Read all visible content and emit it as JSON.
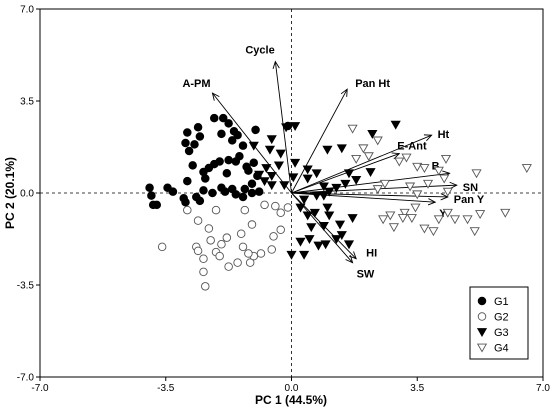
{
  "chart_data": {
    "type": "scatter",
    "subtype": "PCA biplot",
    "title": "",
    "xlabel": "PC 1 (44.5%)",
    "ylabel": "PC 2 (20.1%)",
    "xlim": [
      -7.0,
      7.0
    ],
    "ylim": [
      -7.0,
      7.0
    ],
    "x_ticks": [
      -7.0,
      -3.5,
      0.0,
      3.5,
      7.0
    ],
    "y_ticks": [
      -7.0,
      -3.5,
      0.0,
      3.5,
      7.0
    ],
    "x_tick_labels": [
      "-7.0",
      "-3.5",
      "0.0",
      "3.5",
      "7.0"
    ],
    "y_tick_labels": [
      "-7.0",
      "-3.5",
      "0.0",
      "3.5",
      "7.0"
    ],
    "grid": false,
    "reference_lines": "dashed lines at x = 0 and y = 0",
    "legend_position": "bottom-right",
    "series": [
      {
        "name": "G1",
        "marker": "filled-circle",
        "points": [
          [
            -2.9,
            2.3
          ],
          [
            -2.6,
            2.5
          ],
          [
            -2.55,
            2.15
          ],
          [
            -2.95,
            1.9
          ],
          [
            -2.7,
            1.85
          ],
          [
            -2.85,
            1.6
          ],
          [
            -2.15,
            2.85
          ],
          [
            -1.9,
            2.85
          ],
          [
            -1.75,
            2.65
          ],
          [
            -1.6,
            2.35
          ],
          [
            -1.5,
            2.2
          ],
          [
            -1.95,
            2.25
          ],
          [
            -1.65,
            2.0
          ],
          [
            -1.35,
            1.8
          ],
          [
            -1.0,
            2.4
          ],
          [
            -1.45,
            1.4
          ],
          [
            -1.75,
            1.25
          ],
          [
            -1.55,
            1.2
          ],
          [
            -2.0,
            1.2
          ],
          [
            -2.15,
            1.1
          ],
          [
            -2.3,
            0.95
          ],
          [
            -2.75,
            1.05
          ],
          [
            -2.45,
            0.8
          ],
          [
            -1.8,
            0.75
          ],
          [
            -1.2,
            0.85
          ],
          [
            -1.05,
            1.15
          ],
          [
            -1.25,
            1.0
          ],
          [
            -0.95,
            0.65
          ],
          [
            -1.1,
            0.35
          ],
          [
            -1.3,
            0.15
          ],
          [
            -1.65,
            0.15
          ],
          [
            -1.95,
            0.2
          ],
          [
            -1.85,
            0.05
          ],
          [
            -2.2,
            0.0
          ],
          [
            -2.45,
            0.1
          ],
          [
            -2.65,
            -0.15
          ],
          [
            -2.9,
            0.45
          ],
          [
            -3.0,
            -0.2
          ],
          [
            -3.45,
            0.2
          ],
          [
            -3.3,
            0.05
          ],
          [
            -3.95,
            0.2
          ],
          [
            -3.9,
            -0.1
          ],
          [
            -3.85,
            -0.45
          ],
          [
            -3.75,
            -0.45
          ],
          [
            -2.95,
            -0.35
          ],
          [
            -2.55,
            -0.3
          ],
          [
            -1.55,
            -0.05
          ],
          [
            -1.35,
            -0.15
          ],
          [
            -1.1,
            0.0
          ],
          [
            -0.9,
            0.05
          ],
          [
            -0.1,
            2.55
          ],
          [
            -2.4,
            0.55
          ]
        ]
      },
      {
        "name": "G2",
        "marker": "open-circle",
        "points": [
          [
            -2.9,
            -0.65
          ],
          [
            -2.1,
            -0.65
          ],
          [
            -2.6,
            -1.05
          ],
          [
            -2.3,
            -1.35
          ],
          [
            -1.3,
            -0.65
          ],
          [
            -0.75,
            -0.45
          ],
          [
            -0.45,
            -0.5
          ],
          [
            -0.3,
            -0.75
          ],
          [
            -0.1,
            -0.55
          ],
          [
            -1.1,
            -1.2
          ],
          [
            -1.4,
            -1.55
          ],
          [
            -1.8,
            -1.7
          ],
          [
            -1.95,
            -1.95
          ],
          [
            -3.6,
            -2.05
          ],
          [
            -2.65,
            -2.05
          ],
          [
            -2.25,
            -1.8
          ],
          [
            -2.1,
            -2.25
          ],
          [
            -2.45,
            -2.5
          ],
          [
            -1.5,
            -2.65
          ],
          [
            -1.15,
            -2.65
          ],
          [
            -1.75,
            -2.8
          ],
          [
            -0.85,
            -2.3
          ],
          [
            -0.55,
            -2.15
          ],
          [
            -0.5,
            -1.65
          ],
          [
            -1.05,
            -2.4
          ],
          [
            -2.45,
            -3.0
          ],
          [
            -2.4,
            -3.55
          ],
          [
            -1.35,
            -2.05
          ],
          [
            -2.0,
            -2.4
          ],
          [
            -0.3,
            -1.4
          ],
          [
            -1.2,
            -2.3
          ],
          [
            -2.6,
            -2.2
          ]
        ]
      },
      {
        "name": "G3",
        "marker": "filled-triangle-down",
        "points": [
          [
            -0.15,
            2.5
          ],
          [
            0.1,
            2.55
          ],
          [
            -0.55,
            2.05
          ],
          [
            -1.05,
            1.8
          ],
          [
            -0.6,
            1.65
          ],
          [
            -0.3,
            1.5
          ],
          [
            -0.35,
            1.05
          ],
          [
            -0.7,
            0.95
          ],
          [
            -0.9,
            0.7
          ],
          [
            -0.75,
            0.45
          ],
          [
            -0.55,
            0.65
          ],
          [
            -0.55,
            0.3
          ],
          [
            -0.2,
            0.3
          ],
          [
            0.05,
            0.6
          ],
          [
            0.1,
            1.15
          ],
          [
            0.45,
            0.9
          ],
          [
            0.7,
            0.75
          ],
          [
            0.45,
            0.55
          ],
          [
            0.9,
            0.25
          ],
          [
            0.7,
            -0.1
          ],
          [
            0.9,
            -0.1
          ],
          [
            1.05,
            0.05
          ],
          [
            1.25,
            0.2
          ],
          [
            1.5,
            0.35
          ],
          [
            1.8,
            0.5
          ],
          [
            2.2,
            0.8
          ],
          [
            1.0,
            1.65
          ],
          [
            1.4,
            1.7
          ],
          [
            2.25,
            2.25
          ],
          [
            2.9,
            2.6
          ],
          [
            0.25,
            -0.55
          ],
          [
            0.45,
            -0.85
          ],
          [
            0.65,
            -0.75
          ],
          [
            1.05,
            -0.85
          ],
          [
            0.9,
            -1.25
          ],
          [
            1.35,
            -1.2
          ],
          [
            1.4,
            -1.6
          ],
          [
            1.25,
            -1.75
          ],
          [
            0.95,
            -1.95
          ],
          [
            0.75,
            -2.0
          ],
          [
            0.5,
            -1.75
          ],
          [
            0.25,
            -1.85
          ],
          [
            0.0,
            -2.35
          ],
          [
            0.35,
            -2.35
          ],
          [
            1.6,
            -1.95
          ],
          [
            1.0,
            -0.55
          ],
          [
            0.55,
            -1.3
          ],
          [
            1.6,
            0.75
          ],
          [
            0.35,
            -0.25
          ],
          [
            1.7,
            -0.95
          ]
        ]
      },
      {
        "name": "G4",
        "marker": "open-triangle-down",
        "points": [
          [
            1.7,
            2.45
          ],
          [
            2.4,
            2.0
          ],
          [
            2.0,
            1.7
          ],
          [
            1.8,
            1.3
          ],
          [
            2.15,
            1.4
          ],
          [
            3.0,
            1.2
          ],
          [
            3.2,
            1.35
          ],
          [
            4.3,
            1.3
          ],
          [
            3.5,
            1.0
          ],
          [
            3.7,
            0.95
          ],
          [
            4.1,
            0.85
          ],
          [
            2.6,
            0.35
          ],
          [
            3.3,
            0.25
          ],
          [
            3.8,
            0.35
          ],
          [
            4.25,
            0.55
          ],
          [
            4.35,
            0.05
          ],
          [
            5.15,
            0.75
          ],
          [
            6.55,
            0.95
          ],
          [
            4.35,
            -0.75
          ],
          [
            5.25,
            -0.8
          ],
          [
            5.95,
            -0.75
          ],
          [
            4.1,
            -1.0
          ],
          [
            4.55,
            -1.0
          ],
          [
            2.75,
            -0.85
          ],
          [
            3.15,
            -0.75
          ],
          [
            3.35,
            -0.95
          ],
          [
            2.85,
            -1.3
          ],
          [
            3.7,
            -1.35
          ],
          [
            3.95,
            -1.45
          ],
          [
            5.1,
            -1.45
          ],
          [
            3.45,
            -0.55
          ],
          [
            2.55,
            -1.0
          ],
          [
            3.1,
            -0.95
          ],
          [
            2.4,
            0.15
          ],
          [
            4.9,
            -1.0
          ],
          [
            3.5,
            -0.05
          ]
        ]
      }
    ],
    "loading_vectors": [
      {
        "label": "Cycle",
        "x": -0.45,
        "y": 5.0,
        "label_dx": 0,
        "label_dy": 0
      },
      {
        "label": "A-PM",
        "x": -2.2,
        "y": 3.8,
        "label_dx": 0,
        "label_dy": 0
      },
      {
        "label": "Pan Ht",
        "x": 1.55,
        "y": 3.95,
        "label_dx": 0,
        "label_dy": 0
      },
      {
        "label": "Ht",
        "x": 3.9,
        "y": 2.2,
        "label_dx": 0,
        "label_dy": 0
      },
      {
        "label": "E-Ant",
        "x": 3.0,
        "y": 1.5,
        "label_dx": 0,
        "label_dy": 0
      },
      {
        "label": "B",
        "x": 4.4,
        "y": 0.75,
        "label_dx": 0,
        "label_dy": 0
      },
      {
        "label": "SN",
        "x": 4.6,
        "y": 0.3,
        "label_dx": 0,
        "label_dy": 0
      },
      {
        "label": "Pan Y",
        "x": 4.35,
        "y": -0.15,
        "label_dx": 0,
        "label_dy": 0
      },
      {
        "label": "Y",
        "x": 4.0,
        "y": -0.35,
        "label_dx": 0,
        "label_dy": 0
      },
      {
        "label": "HI",
        "x": 1.8,
        "y": -2.5,
        "label_dx": 0,
        "label_dy": 0
      },
      {
        "label": "SW",
        "x": 1.7,
        "y": -2.65,
        "label_dx": 0,
        "label_dy": 0
      }
    ]
  }
}
